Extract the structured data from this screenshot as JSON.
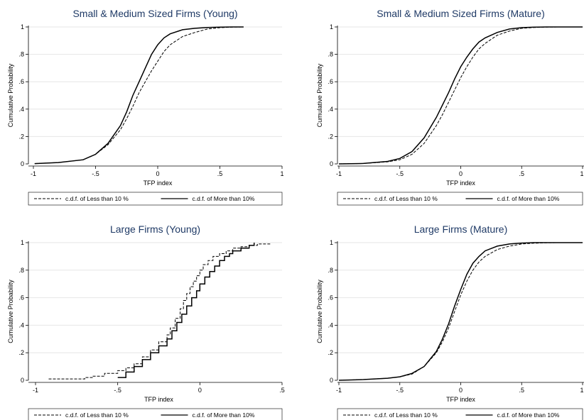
{
  "chart_data": [
    {
      "type": "line",
      "title": "Small & Medium Sized Firms (Young)",
      "xlabel": "TFP index",
      "ylabel": "Cumulative Probability",
      "xlim": [
        -1,
        1
      ],
      "ylim": [
        0,
        1
      ],
      "xticks": [
        -1,
        -0.5,
        0,
        0.5,
        1
      ],
      "xticklabels": [
        "-1",
        "-.5",
        "0",
        ".5",
        "1"
      ],
      "yticks": [
        0,
        0.2,
        0.4,
        0.6,
        0.8,
        1
      ],
      "yticklabels": [
        "0",
        ".2",
        ".4",
        ".6",
        ".8",
        "1"
      ],
      "grid": true,
      "legend_position": "bottom",
      "series": [
        {
          "name": "c.d.f. of  Less than 10 %",
          "style": "dashed",
          "x": [
            -0.99,
            -0.8,
            -0.6,
            -0.5,
            -0.4,
            -0.3,
            -0.25,
            -0.2,
            -0.15,
            -0.1,
            -0.05,
            0,
            0.05,
            0.1,
            0.15,
            0.2,
            0.3,
            0.4,
            0.5,
            0.6,
            0.69
          ],
          "y": [
            0.002,
            0.01,
            0.03,
            0.07,
            0.14,
            0.25,
            0.33,
            0.42,
            0.52,
            0.6,
            0.68,
            0.75,
            0.82,
            0.87,
            0.9,
            0.93,
            0.96,
            0.985,
            0.995,
            0.999,
            1
          ]
        },
        {
          "name": "c.d.f. of  More than 10%",
          "style": "solid",
          "x": [
            -0.99,
            -0.8,
            -0.6,
            -0.5,
            -0.4,
            -0.3,
            -0.25,
            -0.2,
            -0.15,
            -0.1,
            -0.05,
            0,
            0.05,
            0.1,
            0.2,
            0.3,
            0.4,
            0.5,
            0.6,
            0.69
          ],
          "y": [
            0.002,
            0.01,
            0.03,
            0.07,
            0.15,
            0.28,
            0.38,
            0.5,
            0.6,
            0.7,
            0.8,
            0.87,
            0.92,
            0.95,
            0.98,
            0.99,
            0.996,
            0.999,
            1,
            1
          ]
        }
      ]
    },
    {
      "type": "line",
      "title": "Small & Medium Sized Firms (Mature)",
      "xlabel": "TFP index",
      "ylabel": "Cumulative Probability",
      "xlim": [
        -1,
        1
      ],
      "ylim": [
        0,
        1
      ],
      "xticks": [
        -1,
        -0.5,
        0,
        0.5,
        1
      ],
      "xticklabels": [
        "-1",
        "-.5",
        "0",
        ".5",
        "1"
      ],
      "yticks": [
        0,
        0.2,
        0.4,
        0.6,
        0.8,
        1
      ],
      "yticklabels": [
        "0",
        ".2",
        ".4",
        ".6",
        ".8",
        "1"
      ],
      "grid": true,
      "legend_position": "bottom",
      "series": [
        {
          "name": "c.d.f. of  Less than 10 %",
          "style": "dashed",
          "x": [
            -1,
            -0.8,
            -0.6,
            -0.5,
            -0.4,
            -0.3,
            -0.2,
            -0.15,
            -0.1,
            -0.05,
            0,
            0.05,
            0.1,
            0.15,
            0.2,
            0.3,
            0.4,
            0.5,
            0.6,
            0.7,
            0.8,
            1
          ],
          "y": [
            0,
            0.003,
            0.015,
            0.03,
            0.07,
            0.15,
            0.28,
            0.36,
            0.45,
            0.54,
            0.63,
            0.71,
            0.78,
            0.84,
            0.88,
            0.94,
            0.97,
            0.99,
            0.996,
            0.999,
            1,
            1
          ]
        },
        {
          "name": "c.d.f. of  More than 10%",
          "style": "solid",
          "x": [
            -1,
            -0.8,
            -0.6,
            -0.5,
            -0.4,
            -0.3,
            -0.2,
            -0.15,
            -0.1,
            -0.05,
            0,
            0.05,
            0.1,
            0.15,
            0.2,
            0.3,
            0.4,
            0.5,
            0.6,
            0.7,
            0.8,
            1
          ],
          "y": [
            0,
            0.003,
            0.018,
            0.04,
            0.09,
            0.19,
            0.34,
            0.43,
            0.52,
            0.62,
            0.71,
            0.78,
            0.84,
            0.89,
            0.92,
            0.96,
            0.985,
            0.995,
            0.999,
            1,
            1,
            1
          ]
        }
      ]
    },
    {
      "type": "line",
      "title": "Large Firms (Young)",
      "xlabel": "TFP index",
      "ylabel": "Cumulative Probability",
      "xlim": [
        -1,
        0.5
      ],
      "ylim": [
        0,
        1
      ],
      "xticks": [
        -1,
        -0.5,
        0,
        0.5
      ],
      "xticklabels": [
        "-1",
        "-.5",
        "0",
        ".5"
      ],
      "yticks": [
        0,
        0.2,
        0.4,
        0.6,
        0.8,
        1
      ],
      "yticklabels": [
        "0",
        ".2",
        ".4",
        ".6",
        ".8",
        "1"
      ],
      "grid": true,
      "legend_position": "bottom",
      "series": [
        {
          "name": "c.d.f. of  Less than 10 %",
          "style": "dashed",
          "step": true,
          "x": [
            -0.92,
            -0.7,
            -0.65,
            -0.58,
            -0.5,
            -0.45,
            -0.4,
            -0.35,
            -0.3,
            -0.25,
            -0.2,
            -0.18,
            -0.15,
            -0.12,
            -0.1,
            -0.08,
            -0.06,
            -0.04,
            -0.02,
            0,
            0.02,
            0.05,
            0.08,
            0.12,
            0.16,
            0.2,
            0.25,
            0.3,
            0.35,
            0.43
          ],
          "y": [
            0.01,
            0.02,
            0.03,
            0.05,
            0.07,
            0.09,
            0.12,
            0.17,
            0.22,
            0.28,
            0.33,
            0.38,
            0.45,
            0.52,
            0.58,
            0.63,
            0.68,
            0.72,
            0.76,
            0.8,
            0.84,
            0.87,
            0.9,
            0.92,
            0.94,
            0.96,
            0.97,
            0.98,
            0.99,
            0.99
          ]
        },
        {
          "name": "c.d.f. of  More than 10%",
          "style": "solid",
          "step": true,
          "x": [
            -0.5,
            -0.45,
            -0.4,
            -0.35,
            -0.3,
            -0.25,
            -0.2,
            -0.17,
            -0.14,
            -0.11,
            -0.08,
            -0.05,
            -0.02,
            0,
            0.03,
            0.06,
            0.09,
            0.12,
            0.15,
            0.18,
            0.2,
            0.25,
            0.3,
            0.33
          ],
          "y": [
            0.02,
            0.06,
            0.1,
            0.15,
            0.2,
            0.25,
            0.3,
            0.36,
            0.42,
            0.48,
            0.54,
            0.6,
            0.65,
            0.7,
            0.75,
            0.79,
            0.83,
            0.87,
            0.9,
            0.92,
            0.94,
            0.96,
            0.98,
            1
          ]
        }
      ]
    },
    {
      "type": "line",
      "title": "Large Firms (Mature)",
      "xlabel": "TFP index",
      "ylabel": "Cumulative Probability",
      "xlim": [
        -1,
        1
      ],
      "ylim": [
        0,
        1
      ],
      "xticks": [
        -1,
        -0.5,
        0,
        0.5,
        1
      ],
      "xticklabels": [
        "-1",
        "-.5",
        "0",
        ".5",
        "1"
      ],
      "yticks": [
        0,
        0.2,
        0.4,
        0.6,
        0.8,
        1
      ],
      "yticklabels": [
        "0",
        ".2",
        ".4",
        ".6",
        ".8",
        "1"
      ],
      "grid": true,
      "legend_position": "bottom",
      "series": [
        {
          "name": "c.d.f. of  Less than 10 %",
          "style": "dashed",
          "x": [
            -1,
            -0.8,
            -0.6,
            -0.5,
            -0.4,
            -0.3,
            -0.2,
            -0.15,
            -0.1,
            -0.05,
            0,
            0.05,
            0.1,
            0.15,
            0.2,
            0.3,
            0.4,
            0.5,
            0.6,
            0.7,
            0.8,
            1
          ],
          "y": [
            0,
            0.005,
            0.015,
            0.025,
            0.045,
            0.1,
            0.2,
            0.28,
            0.38,
            0.5,
            0.62,
            0.72,
            0.8,
            0.86,
            0.9,
            0.95,
            0.975,
            0.99,
            0.996,
            0.999,
            1,
            1
          ]
        },
        {
          "name": "c.d.f. of  More than 10%",
          "style": "solid",
          "x": [
            -1,
            -0.8,
            -0.6,
            -0.5,
            -0.4,
            -0.3,
            -0.2,
            -0.15,
            -0.1,
            -0.05,
            0,
            0.05,
            0.1,
            0.15,
            0.2,
            0.3,
            0.4,
            0.5,
            0.6,
            0.7,
            0.8,
            1
          ],
          "y": [
            0,
            0.005,
            0.015,
            0.025,
            0.05,
            0.1,
            0.21,
            0.3,
            0.41,
            0.54,
            0.66,
            0.77,
            0.85,
            0.9,
            0.94,
            0.975,
            0.99,
            0.997,
            1,
            1,
            1,
            1
          ]
        }
      ]
    }
  ]
}
